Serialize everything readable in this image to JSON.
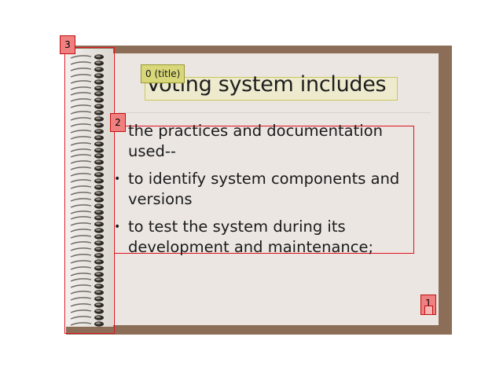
{
  "slide": {
    "title": "Voting system includes",
    "bullets": [
      "the practices and  documentation used--",
      "to identify system components and versions",
      "to test the system during its development and maintenance;"
    ],
    "bullet_symbol": "•"
  },
  "annotations": {
    "title_label": "0 (title)",
    "page_icon_label": "1",
    "body_label": "2",
    "binding_label": "3"
  },
  "colors": {
    "frame": "#8c6e58",
    "paper": "#ebe6e2",
    "annotation_red": "#e0121f",
    "title_highlight": "#d8d87a"
  }
}
